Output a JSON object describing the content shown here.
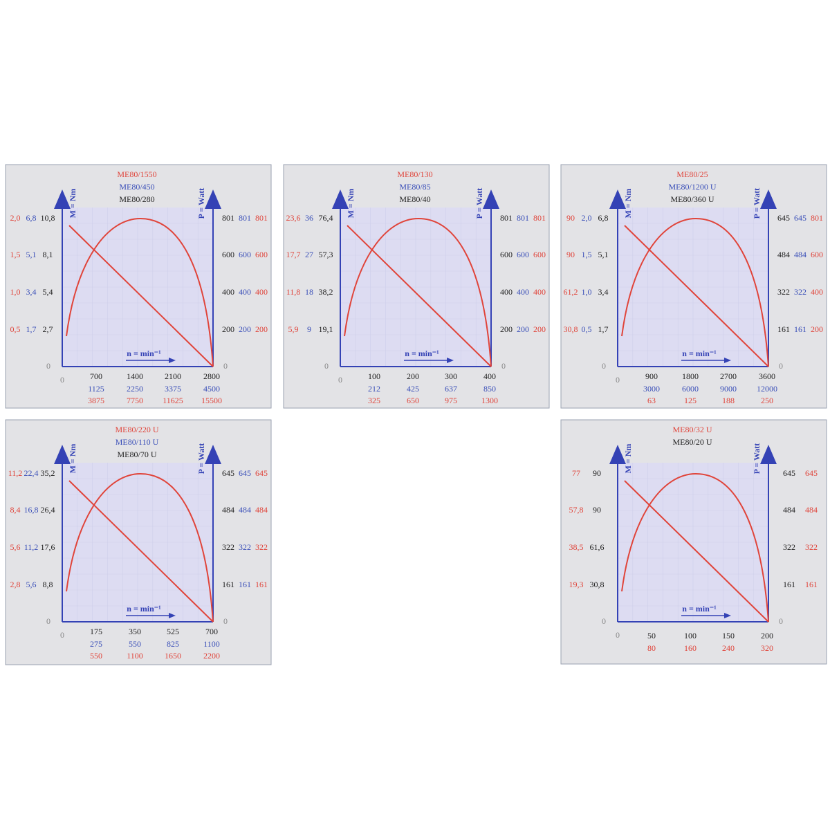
{
  "panels": [
    {
      "titles": [
        {
          "text": "ME80/1550",
          "color": "#e0443a"
        },
        {
          "text": "ME80/450",
          "color": "#3a4fb8"
        },
        {
          "text": "ME80/280",
          "color": "#222222"
        }
      ],
      "y_axis_label": "M = Nm",
      "y2_axis_label": "P = Watt",
      "x_axis_label": "n = min⁻¹",
      "origin": [
        "0",
        "0",
        "0"
      ],
      "left_columns": [
        {
          "color": "#e0443a",
          "labels": [
            "2,0",
            "1,5",
            "1,0",
            "0,5"
          ]
        },
        {
          "color": "#3a4fb8",
          "labels": [
            "6,8",
            "5,1",
            "3,4",
            "1,7"
          ]
        },
        {
          "color": "#222222",
          "labels": [
            "10,8",
            "8,1",
            "5,4",
            "2,7"
          ]
        }
      ],
      "right_columns": [
        {
          "color": "#222222",
          "labels": [
            "801",
            "600",
            "400",
            "200"
          ]
        },
        {
          "color": "#3a4fb8",
          "labels": [
            "801",
            "600",
            "400",
            "200"
          ]
        },
        {
          "color": "#e0443a",
          "labels": [
            "801",
            "600",
            "400",
            "200"
          ]
        }
      ],
      "bottom_rows": [
        {
          "color": "#222222",
          "labels": [
            "700",
            "1400",
            "2100",
            "2800"
          ]
        },
        {
          "color": "#3a4fb8",
          "labels": [
            "1125",
            "2250",
            "3375",
            "4500"
          ]
        },
        {
          "color": "#e0443a",
          "labels": [
            "3875",
            "7750",
            "11625",
            "15500"
          ]
        }
      ]
    },
    {
      "titles": [
        {
          "text": "ME80/130",
          "color": "#e0443a"
        },
        {
          "text": "ME80/85",
          "color": "#3a4fb8"
        },
        {
          "text": "ME80/40",
          "color": "#222222"
        }
      ],
      "y_axis_label": "M = Nm",
      "y2_axis_label": "P = Watt",
      "x_axis_label": "n = min⁻¹",
      "origin": [
        "0",
        "0",
        "0"
      ],
      "left_columns": [
        {
          "color": "#e0443a",
          "labels": [
            "23,6",
            "17,7",
            "11,8",
            "5,9"
          ]
        },
        {
          "color": "#3a4fb8",
          "labels": [
            "36",
            "27",
            "18",
            "9"
          ]
        },
        {
          "color": "#222222",
          "labels": [
            "76,4",
            "57,3",
            "38,2",
            "19,1"
          ]
        }
      ],
      "right_columns": [
        {
          "color": "#222222",
          "labels": [
            "801",
            "600",
            "400",
            "200"
          ]
        },
        {
          "color": "#3a4fb8",
          "labels": [
            "801",
            "600",
            "400",
            "200"
          ]
        },
        {
          "color": "#e0443a",
          "labels": [
            "801",
            "600",
            "400",
            "200"
          ]
        }
      ],
      "bottom_rows": [
        {
          "color": "#222222",
          "labels": [
            "100",
            "200",
            "300",
            "400"
          ]
        },
        {
          "color": "#3a4fb8",
          "labels": [
            "212",
            "425",
            "637",
            "850"
          ]
        },
        {
          "color": "#e0443a",
          "labels": [
            "325",
            "650",
            "975",
            "1300"
          ]
        }
      ]
    },
    {
      "titles": [
        {
          "text": "ME80/25",
          "color": "#e0443a"
        },
        {
          "text": "ME80/1200 U",
          "color": "#3a4fb8"
        },
        {
          "text": "ME80/360 U",
          "color": "#222222"
        }
      ],
      "y_axis_label": "M = Nm",
      "y2_axis_label": "P = Watt",
      "x_axis_label": "n = min⁻¹",
      "origin": [
        "0",
        "0",
        "0"
      ],
      "left_columns": [
        {
          "color": "#e0443a",
          "labels": [
            "90",
            "90",
            "61,2",
            "30,8"
          ]
        },
        {
          "color": "#3a4fb8",
          "labels": [
            "2,0",
            "1,5",
            "1,0",
            "0,5"
          ]
        },
        {
          "color": "#222222",
          "labels": [
            "6,8",
            "5,1",
            "3,4",
            "1,7"
          ]
        }
      ],
      "right_columns": [
        {
          "color": "#222222",
          "labels": [
            "645",
            "484",
            "322",
            "161"
          ]
        },
        {
          "color": "#3a4fb8",
          "labels": [
            "645",
            "484",
            "322",
            "161"
          ]
        },
        {
          "color": "#e0443a",
          "labels": [
            "801",
            "600",
            "400",
            "200"
          ]
        }
      ],
      "bottom_rows": [
        {
          "color": "#222222",
          "labels": [
            "900",
            "1800",
            "2700",
            "3600"
          ]
        },
        {
          "color": "#3a4fb8",
          "labels": [
            "3000",
            "6000",
            "9000",
            "12000"
          ]
        },
        {
          "color": "#e0443a",
          "labels": [
            "63",
            "125",
            "188",
            "250"
          ]
        }
      ]
    },
    {
      "titles": [
        {
          "text": "ME80/220 U",
          "color": "#e0443a"
        },
        {
          "text": "ME80/110 U",
          "color": "#3a4fb8"
        },
        {
          "text": "ME80/70 U",
          "color": "#222222"
        }
      ],
      "y_axis_label": "M = Nm",
      "y2_axis_label": "P = Watt",
      "x_axis_label": "n = min⁻¹",
      "origin": [
        "0",
        "0",
        "0"
      ],
      "left_columns": [
        {
          "color": "#e0443a",
          "labels": [
            "11,2",
            "8,4",
            "5,6",
            "2,8"
          ]
        },
        {
          "color": "#3a4fb8",
          "labels": [
            "22,4",
            "16,8",
            "11,2",
            "5,6"
          ]
        },
        {
          "color": "#222222",
          "labels": [
            "35,2",
            "26,4",
            "17,6",
            "8,8"
          ]
        }
      ],
      "right_columns": [
        {
          "color": "#222222",
          "labels": [
            "645",
            "484",
            "322",
            "161"
          ]
        },
        {
          "color": "#3a4fb8",
          "labels": [
            "645",
            "484",
            "322",
            "161"
          ]
        },
        {
          "color": "#e0443a",
          "labels": [
            "645",
            "484",
            "322",
            "161"
          ]
        }
      ],
      "bottom_rows": [
        {
          "color": "#222222",
          "labels": [
            "175",
            "350",
            "525",
            "700"
          ]
        },
        {
          "color": "#3a4fb8",
          "labels": [
            "275",
            "550",
            "825",
            "1100"
          ]
        },
        {
          "color": "#e0443a",
          "labels": [
            "550",
            "1100",
            "1650",
            "2200"
          ]
        }
      ]
    },
    {
      "titles": [
        {
          "text": "ME80/32 U",
          "color": "#e0443a"
        },
        {
          "text": "ME80/20 U",
          "color": "#222222"
        }
      ],
      "y_axis_label": "M = Nm",
      "y2_axis_label": "P = Watt",
      "x_axis_label": "n = min⁻¹",
      "origin": [
        "0",
        "0",
        "0"
      ],
      "left_columns": [
        {
          "color": "#e0443a",
          "labels": [
            "77",
            "57,8",
            "38,5",
            "19,3"
          ]
        },
        {
          "color": "#222222",
          "labels": [
            "90",
            "90",
            "61,6",
            "30,8"
          ]
        }
      ],
      "right_columns": [
        {
          "color": "#222222",
          "labels": [
            "645",
            "484",
            "322",
            "161"
          ]
        },
        {
          "color": "#e0443a",
          "labels": [
            "645",
            "484",
            "322",
            "161"
          ]
        }
      ],
      "bottom_rows": [
        {
          "color": "#222222",
          "labels": [
            "50",
            "100",
            "150",
            "200"
          ]
        },
        {
          "color": "#e0443a",
          "labels": [
            "80",
            "160",
            "240",
            "320"
          ]
        }
      ]
    }
  ]
}
